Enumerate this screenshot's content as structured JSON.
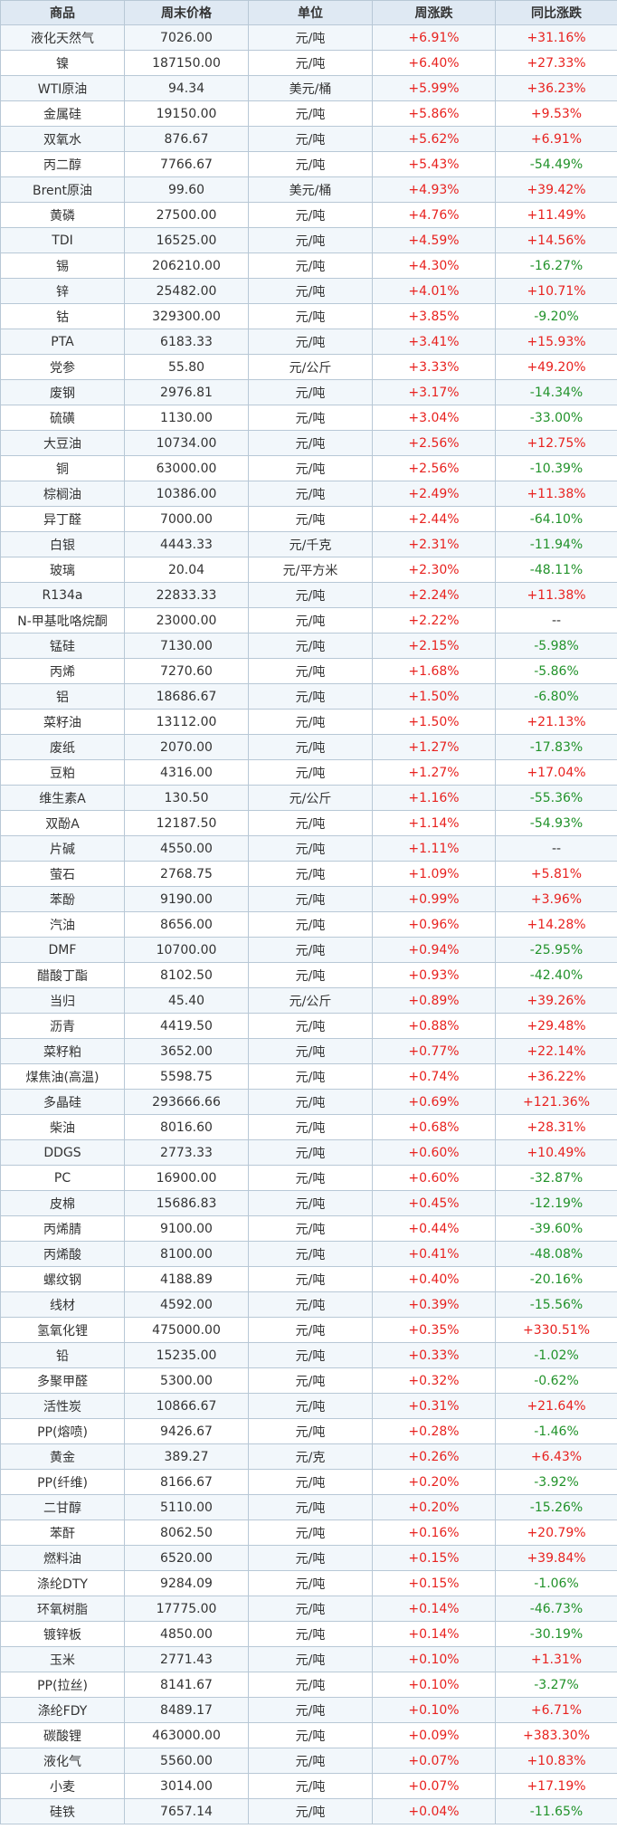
{
  "table": {
    "headers": [
      "商品",
      "周末价格",
      "单位",
      "周涨跌",
      "同比涨跌"
    ],
    "colors": {
      "up": "#e8221f",
      "down": "#21922a",
      "header_bg": "#dfe9f3",
      "border": "#b8c8d6"
    },
    "rows": [
      [
        "液化天然气",
        "7026.00",
        "元/吨",
        "+6.91%",
        "+31.16%"
      ],
      [
        "镍",
        "187150.00",
        "元/吨",
        "+6.40%",
        "+27.33%"
      ],
      [
        "WTI原油",
        "94.34",
        "美元/桶",
        "+5.99%",
        "+36.23%"
      ],
      [
        "金属硅",
        "19150.00",
        "元/吨",
        "+5.86%",
        "+9.53%"
      ],
      [
        "双氧水",
        "876.67",
        "元/吨",
        "+5.62%",
        "+6.91%"
      ],
      [
        "丙二醇",
        "7766.67",
        "元/吨",
        "+5.43%",
        "-54.49%"
      ],
      [
        "Brent原油",
        "99.60",
        "美元/桶",
        "+4.93%",
        "+39.42%"
      ],
      [
        "黄磷",
        "27500.00",
        "元/吨",
        "+4.76%",
        "+11.49%"
      ],
      [
        "TDI",
        "16525.00",
        "元/吨",
        "+4.59%",
        "+14.56%"
      ],
      [
        "锡",
        "206210.00",
        "元/吨",
        "+4.30%",
        "-16.27%"
      ],
      [
        "锌",
        "25482.00",
        "元/吨",
        "+4.01%",
        "+10.71%"
      ],
      [
        "钴",
        "329300.00",
        "元/吨",
        "+3.85%",
        "-9.20%"
      ],
      [
        "PTA",
        "6183.33",
        "元/吨",
        "+3.41%",
        "+15.93%"
      ],
      [
        "党参",
        "55.80",
        "元/公斤",
        "+3.33%",
        "+49.20%"
      ],
      [
        "废钢",
        "2976.81",
        "元/吨",
        "+3.17%",
        "-14.34%"
      ],
      [
        "硫磺",
        "1130.00",
        "元/吨",
        "+3.04%",
        "-33.00%"
      ],
      [
        "大豆油",
        "10734.00",
        "元/吨",
        "+2.56%",
        "+12.75%"
      ],
      [
        "铜",
        "63000.00",
        "元/吨",
        "+2.56%",
        "-10.39%"
      ],
      [
        "棕榈油",
        "10386.00",
        "元/吨",
        "+2.49%",
        "+11.38%"
      ],
      [
        "异丁醛",
        "7000.00",
        "元/吨",
        "+2.44%",
        "-64.10%"
      ],
      [
        "白银",
        "4443.33",
        "元/千克",
        "+2.31%",
        "-11.94%"
      ],
      [
        "玻璃",
        "20.04",
        "元/平方米",
        "+2.30%",
        "-48.11%"
      ],
      [
        "R134a",
        "22833.33",
        "元/吨",
        "+2.24%",
        "+11.38%"
      ],
      [
        "N-甲基吡咯烷酮",
        "23000.00",
        "元/吨",
        "+2.22%",
        "--"
      ],
      [
        "锰硅",
        "7130.00",
        "元/吨",
        "+2.15%",
        "-5.98%"
      ],
      [
        "丙烯",
        "7270.60",
        "元/吨",
        "+1.68%",
        "-5.86%"
      ],
      [
        "铝",
        "18686.67",
        "元/吨",
        "+1.50%",
        "-6.80%"
      ],
      [
        "菜籽油",
        "13112.00",
        "元/吨",
        "+1.50%",
        "+21.13%"
      ],
      [
        "废纸",
        "2070.00",
        "元/吨",
        "+1.27%",
        "-17.83%"
      ],
      [
        "豆粕",
        "4316.00",
        "元/吨",
        "+1.27%",
        "+17.04%"
      ],
      [
        "维生素A",
        "130.50",
        "元/公斤",
        "+1.16%",
        "-55.36%"
      ],
      [
        "双酚A",
        "12187.50",
        "元/吨",
        "+1.14%",
        "-54.93%"
      ],
      [
        "片碱",
        "4550.00",
        "元/吨",
        "+1.11%",
        "--"
      ],
      [
        "萤石",
        "2768.75",
        "元/吨",
        "+1.09%",
        "+5.81%"
      ],
      [
        "苯酚",
        "9190.00",
        "元/吨",
        "+0.99%",
        "+3.96%"
      ],
      [
        "汽油",
        "8656.00",
        "元/吨",
        "+0.96%",
        "+14.28%"
      ],
      [
        "DMF",
        "10700.00",
        "元/吨",
        "+0.94%",
        "-25.95%"
      ],
      [
        "醋酸丁酯",
        "8102.50",
        "元/吨",
        "+0.93%",
        "-42.40%"
      ],
      [
        "当归",
        "45.40",
        "元/公斤",
        "+0.89%",
        "+39.26%"
      ],
      [
        "沥青",
        "4419.50",
        "元/吨",
        "+0.88%",
        "+29.48%"
      ],
      [
        "菜籽粕",
        "3652.00",
        "元/吨",
        "+0.77%",
        "+22.14%"
      ],
      [
        "煤焦油(高温)",
        "5598.75",
        "元/吨",
        "+0.74%",
        "+36.22%"
      ],
      [
        "多晶硅",
        "293666.66",
        "元/吨",
        "+0.69%",
        "+121.36%"
      ],
      [
        "柴油",
        "8016.60",
        "元/吨",
        "+0.68%",
        "+28.31%"
      ],
      [
        "DDGS",
        "2773.33",
        "元/吨",
        "+0.60%",
        "+10.49%"
      ],
      [
        "PC",
        "16900.00",
        "元/吨",
        "+0.60%",
        "-32.87%"
      ],
      [
        "皮棉",
        "15686.83",
        "元/吨",
        "+0.45%",
        "-12.19%"
      ],
      [
        "丙烯腈",
        "9100.00",
        "元/吨",
        "+0.44%",
        "-39.60%"
      ],
      [
        "丙烯酸",
        "8100.00",
        "元/吨",
        "+0.41%",
        "-48.08%"
      ],
      [
        "螺纹钢",
        "4188.89",
        "元/吨",
        "+0.40%",
        "-20.16%"
      ],
      [
        "线材",
        "4592.00",
        "元/吨",
        "+0.39%",
        "-15.56%"
      ],
      [
        "氢氧化锂",
        "475000.00",
        "元/吨",
        "+0.35%",
        "+330.51%"
      ],
      [
        "铅",
        "15235.00",
        "元/吨",
        "+0.33%",
        "-1.02%"
      ],
      [
        "多聚甲醛",
        "5300.00",
        "元/吨",
        "+0.32%",
        "-0.62%"
      ],
      [
        "活性炭",
        "10866.67",
        "元/吨",
        "+0.31%",
        "+21.64%"
      ],
      [
        "PP(熔喷)",
        "9426.67",
        "元/吨",
        "+0.28%",
        "-1.46%"
      ],
      [
        "黄金",
        "389.27",
        "元/克",
        "+0.26%",
        "+6.43%"
      ],
      [
        "PP(纤维)",
        "8166.67",
        "元/吨",
        "+0.20%",
        "-3.92%"
      ],
      [
        "二甘醇",
        "5110.00",
        "元/吨",
        "+0.20%",
        "-15.26%"
      ],
      [
        "苯酐",
        "8062.50",
        "元/吨",
        "+0.16%",
        "+20.79%"
      ],
      [
        "燃料油",
        "6520.00",
        "元/吨",
        "+0.15%",
        "+39.84%"
      ],
      [
        "涤纶DTY",
        "9284.09",
        "元/吨",
        "+0.15%",
        "-1.06%"
      ],
      [
        "环氧树脂",
        "17775.00",
        "元/吨",
        "+0.14%",
        "-46.73%"
      ],
      [
        "镀锌板",
        "4850.00",
        "元/吨",
        "+0.14%",
        "-30.19%"
      ],
      [
        "玉米",
        "2771.43",
        "元/吨",
        "+0.10%",
        "+1.31%"
      ],
      [
        "PP(拉丝)",
        "8141.67",
        "元/吨",
        "+0.10%",
        "-3.27%"
      ],
      [
        "涤纶FDY",
        "8489.17",
        "元/吨",
        "+0.10%",
        "+6.71%"
      ],
      [
        "碳酸锂",
        "463000.00",
        "元/吨",
        "+0.09%",
        "+383.30%"
      ],
      [
        "液化气",
        "5560.00",
        "元/吨",
        "+0.07%",
        "+10.83%"
      ],
      [
        "小麦",
        "3014.00",
        "元/吨",
        "+0.07%",
        "+17.19%"
      ],
      [
        "硅铁",
        "7657.14",
        "元/吨",
        "+0.04%",
        "-11.65%"
      ]
    ]
  }
}
